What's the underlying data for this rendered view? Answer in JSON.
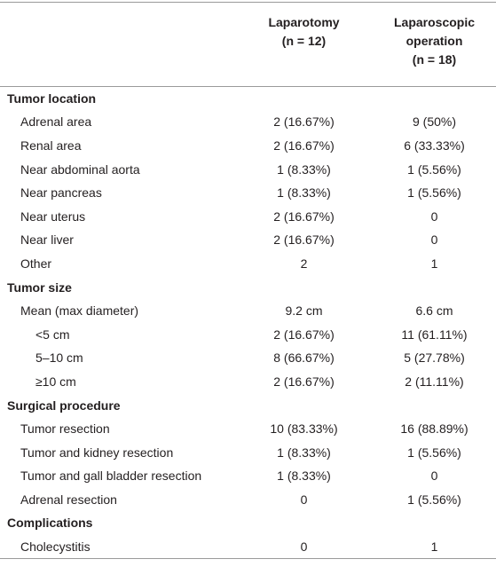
{
  "table": {
    "columns": [
      {
        "title": "Laparotomy",
        "n": "(n = 12)"
      },
      {
        "title": "Laparoscopic operation",
        "n": "(n = 18)"
      }
    ],
    "sections": [
      {
        "title": "Tumor location",
        "rows": [
          {
            "label": "Adrenal area",
            "values": [
              "2 (16.67%)",
              "9 (50%)"
            ]
          },
          {
            "label": "Renal area",
            "values": [
              "2 (16.67%)",
              "6 (33.33%)"
            ]
          },
          {
            "label": "Near abdominal aorta",
            "values": [
              "1 (8.33%)",
              "1 (5.56%)"
            ]
          },
          {
            "label": "Near pancreas",
            "values": [
              "1 (8.33%)",
              "1 (5.56%)"
            ]
          },
          {
            "label": "Near uterus",
            "values": [
              "2 (16.67%)",
              "0"
            ]
          },
          {
            "label": "Near liver",
            "values": [
              "2 (16.67%)",
              "0"
            ]
          },
          {
            "label": "Other",
            "values": [
              "2",
              "1"
            ]
          }
        ]
      },
      {
        "title": "Tumor size",
        "rows": [
          {
            "label": "Mean (max diameter)",
            "values": [
              "9.2 cm",
              "6.6 cm"
            ],
            "subrows": [
              {
                "label": "<5 cm",
                "values": [
                  "2 (16.67%)",
                  "11 (61.11%)"
                ]
              },
              {
                "label": "5–10 cm",
                "values": [
                  "8 (66.67%)",
                  "5 (27.78%)"
                ]
              },
              {
                "label": "≥10 cm",
                "values": [
                  "2 (16.67%)",
                  "2 (11.11%)"
                ]
              }
            ]
          }
        ]
      },
      {
        "title": "Surgical procedure",
        "rows": [
          {
            "label": "Tumor resection",
            "values": [
              "10 (83.33%)",
              "16 (88.89%)"
            ]
          },
          {
            "label": "Tumor and kidney resection",
            "values": [
              "1 (8.33%)",
              "1 (5.56%)"
            ]
          },
          {
            "label": "Tumor and gall bladder resection",
            "values": [
              "1 (8.33%)",
              "0"
            ]
          },
          {
            "label": "Adrenal resection",
            "values": [
              "0",
              "1 (5.56%)"
            ]
          }
        ]
      },
      {
        "title": "Complications",
        "rows": [
          {
            "label": "Cholecystitis",
            "values": [
              "0",
              "1"
            ]
          }
        ]
      }
    ]
  }
}
